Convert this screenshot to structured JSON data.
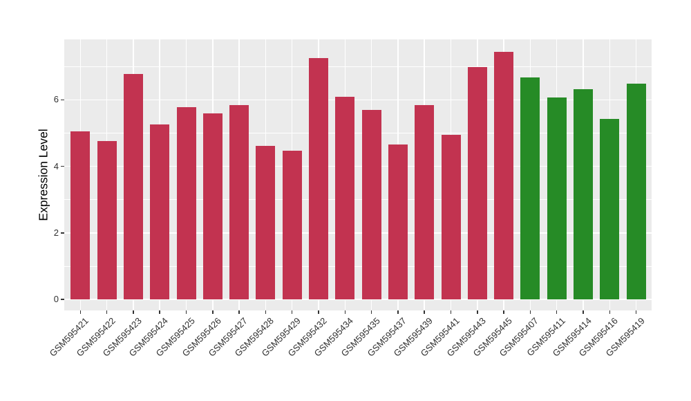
{
  "chart_data": {
    "type": "bar",
    "title": "",
    "xlabel": "",
    "ylabel": "Expression Level",
    "ylim": [
      0,
      7.8
    ],
    "yticks": [
      0,
      2,
      4,
      6
    ],
    "yminor": [
      1,
      3,
      5,
      7
    ],
    "grid": "major and minor, white on gray panel",
    "legend_position": "none",
    "panel_bg": "#EBEBEB",
    "grid_color": "#FFFFFF",
    "tick_text_color": "#303030",
    "group_colors": {
      "control": "#C23350",
      "treatment": "#268B26"
    },
    "categories": [
      "GSM595421",
      "GSM595422",
      "GSM595423",
      "GSM595424",
      "GSM595425",
      "GSM595426",
      "GSM595427",
      "GSM595428",
      "GSM595429",
      "GSM595432",
      "GSM595434",
      "GSM595435",
      "GSM595437",
      "GSM595439",
      "GSM595441",
      "GSM595443",
      "GSM595445",
      "GSM595407",
      "GSM595411",
      "GSM595414",
      "GSM595416",
      "GSM595419"
    ],
    "values": [
      5.05,
      4.77,
      6.78,
      5.25,
      5.78,
      5.6,
      5.84,
      4.61,
      4.46,
      7.25,
      6.1,
      5.7,
      4.65,
      5.84,
      4.94,
      6.98,
      7.45,
      6.67,
      6.07,
      6.32,
      5.43,
      6.49
    ],
    "bar_groups": [
      "control",
      "control",
      "control",
      "control",
      "control",
      "control",
      "control",
      "control",
      "control",
      "control",
      "control",
      "control",
      "control",
      "control",
      "control",
      "control",
      "control",
      "treatment",
      "treatment",
      "treatment",
      "treatment",
      "treatment"
    ]
  }
}
